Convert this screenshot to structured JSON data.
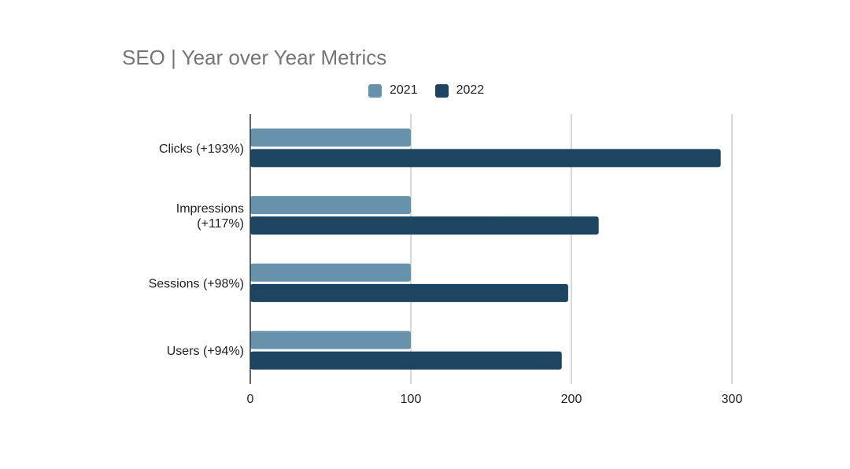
{
  "chart_data": {
    "type": "bar",
    "orientation": "horizontal",
    "title": "SEO | Year over Year Metrics",
    "categories": [
      [
        "Clicks (+193%)"
      ],
      [
        "Impressions",
        "(+117%)"
      ],
      [
        "Sessions (+98%)"
      ],
      [
        "Users (+94%)"
      ]
    ],
    "series": [
      {
        "name": "2021",
        "color": "#6792ab",
        "values": [
          100,
          100,
          100,
          100
        ]
      },
      {
        "name": "2022",
        "color": "#1d4561",
        "values": [
          293,
          217,
          198,
          194
        ]
      }
    ],
    "xlim": [
      0,
      300
    ],
    "xticks": [
      "0",
      "100",
      "200",
      "300"
    ],
    "grid": true,
    "legend_position": "top"
  }
}
